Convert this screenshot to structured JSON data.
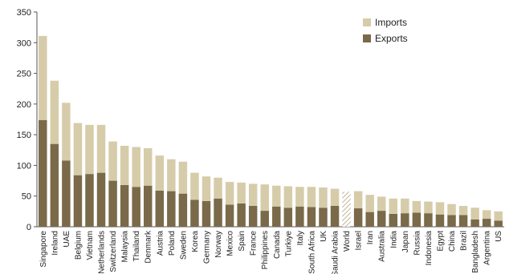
{
  "chart_data": {
    "type": "bar",
    "stacked": true,
    "ylim": [
      0,
      350
    ],
    "yticks": [
      0,
      50,
      100,
      150,
      200,
      250,
      300,
      350
    ],
    "grid": false,
    "legend_position": "top-right",
    "categories": [
      "Singapore",
      "Ireland",
      "UAE",
      "Belgium",
      "Vietnam",
      "Netherlands",
      "Switzerland",
      "Malaysia",
      "Thailand",
      "Denmark",
      "Austria",
      "Poland",
      "Sweden",
      "Korea",
      "Germany",
      "Norway",
      "Mexico",
      "Spain",
      "France",
      "Philippines",
      "Canada",
      "Turkiye",
      "Italy",
      "South Africa",
      "UK",
      "Saudi Arabia",
      "World",
      "Israel",
      "Iran",
      "Australia",
      "India",
      "Japan",
      "Russia",
      "Indonesia",
      "Egypt",
      "China",
      "Brazil",
      "Bangladesh",
      "Argentina",
      "US"
    ],
    "series": [
      {
        "name": "Exports",
        "color": "#7a6a4a",
        "values": [
          174,
          135,
          108,
          84,
          86,
          88,
          75,
          68,
          65,
          67,
          59,
          58,
          54,
          44,
          42,
          46,
          36,
          38,
          34,
          26,
          33,
          31,
          33,
          32,
          31,
          34,
          25,
          30,
          24,
          26,
          21,
          22,
          23,
          22,
          20,
          19,
          19,
          12,
          13,
          10
        ]
      },
      {
        "name": "Imports",
        "color": "#d6ccaa",
        "values": [
          137,
          103,
          94,
          85,
          80,
          78,
          64,
          64,
          65,
          61,
          57,
          52,
          52,
          44,
          40,
          34,
          37,
          34,
          36,
          43,
          34,
          35,
          32,
          33,
          33,
          28,
          32,
          28,
          28,
          23,
          25,
          24,
          19,
          19,
          20,
          18,
          15,
          19,
          14,
          15
        ]
      }
    ],
    "hatched_category": "World",
    "legend": [
      "Imports",
      "Exports"
    ]
  }
}
